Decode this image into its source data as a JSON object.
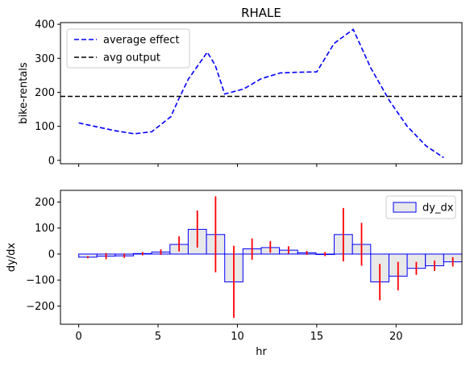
{
  "chart_data": [
    {
      "type": "line",
      "title": "RHALE",
      "xlabel": "",
      "ylabel": "bike-rentals",
      "xlim": [
        -1.15,
        24.15
      ],
      "ylim": [
        -10,
        405
      ],
      "xticks": [
        0,
        5,
        10,
        15,
        20
      ],
      "yticks": [
        0,
        100,
        200,
        300,
        400
      ],
      "yticklabels": [
        "0",
        "100",
        "200",
        "300",
        "400"
      ],
      "legend_position": "top-left",
      "series": [
        {
          "name": "average effect",
          "style": "dashed",
          "color": "#0000ff",
          "x": [
            0,
            1.2,
            2.3,
            3.5,
            4.6,
            5.8,
            6.3,
            6.9,
            8.1,
            8.6,
            9.2,
            10.4,
            11.5,
            12.7,
            13.8,
            15.0,
            16.1,
            17.3,
            18.4,
            19.6,
            20.7,
            21.9,
            23.0
          ],
          "y": [
            110,
            98,
            87,
            78,
            84,
            128,
            180,
            238,
            318,
            280,
            195,
            210,
            240,
            257,
            259,
            260,
            344,
            385,
            272,
            174,
            100,
            42,
            8
          ]
        },
        {
          "name": "avg output",
          "style": "dashed",
          "color": "#000000",
          "type": "hline",
          "y": 188
        }
      ]
    },
    {
      "type": "bar",
      "title": "",
      "xlabel": "hr",
      "ylabel": "dy/dx",
      "xlim": [
        -1.15,
        24.15
      ],
      "ylim": [
        -270,
        245
      ],
      "xticks": [
        0,
        5,
        10,
        15,
        20
      ],
      "xticklabels": [
        "0",
        "5",
        "10",
        "15",
        "20"
      ],
      "yticks": [
        -200,
        -100,
        0,
        100,
        200
      ],
      "yticklabels": [
        "−200",
        "−100",
        "0",
        "100",
        "200"
      ],
      "legend_position": "top-right",
      "series": [
        {
          "name": "dy_dx",
          "fill": "#e8e8e8",
          "edge": "#0000ff",
          "bins": [
            0,
            1.15,
            2.3,
            3.45,
            4.6,
            5.75,
            6.9,
            8.05,
            9.2,
            10.35,
            11.5,
            12.65,
            13.8,
            14.95,
            16.1,
            17.25,
            18.4,
            19.55,
            20.7,
            21.85,
            23.0
          ],
          "values": [
            -12,
            -8,
            -7,
            2,
            8,
            37,
            95,
            75,
            -107,
            20,
            25,
            15,
            5,
            0,
            75,
            37,
            -107,
            -85,
            -55,
            -45,
            -30
          ],
          "err_low": [
            -16,
            -20,
            -15,
            -5,
            -3,
            10,
            25,
            -70,
            -245,
            -22,
            5,
            2,
            -3,
            -8,
            -28,
            -45,
            -178,
            -140,
            -80,
            -65,
            -48
          ],
          "err_high": [
            -8,
            4,
            2,
            8,
            18,
            68,
            168,
            222,
            32,
            60,
            50,
            30,
            12,
            8,
            177,
            120,
            -38,
            -30,
            -30,
            -25,
            -12
          ],
          "err_color": "#ff0000"
        }
      ]
    }
  ]
}
